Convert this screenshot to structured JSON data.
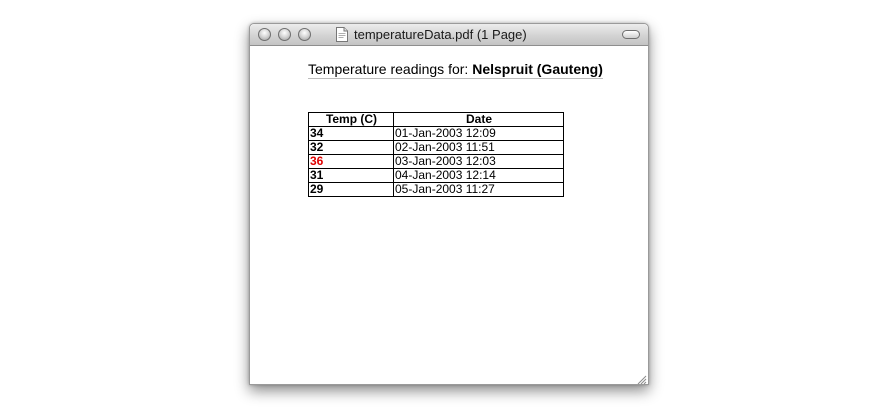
{
  "window": {
    "title": "temperatureData.pdf (1 Page)",
    "document_icon": "pdf-document-icon"
  },
  "document": {
    "heading_prefix": "Temperature readings for:",
    "location": "Nelspruit (Gauteng)",
    "table": {
      "columns": [
        "Temp (C)",
        "Date"
      ],
      "rows": [
        {
          "temp": "34",
          "date": "01-Jan-2003 12:09",
          "highlight": false
        },
        {
          "temp": "32",
          "date": "02-Jan-2003 11:51",
          "highlight": false
        },
        {
          "temp": "36",
          "date": "03-Jan-2003 12:03",
          "highlight": true
        },
        {
          "temp": "31",
          "date": "04-Jan-2003 12:14",
          "highlight": false
        },
        {
          "temp": "29",
          "date": "05-Jan-2003 11:27",
          "highlight": false
        }
      ]
    },
    "colors": {
      "highlight": "#e00000"
    }
  }
}
